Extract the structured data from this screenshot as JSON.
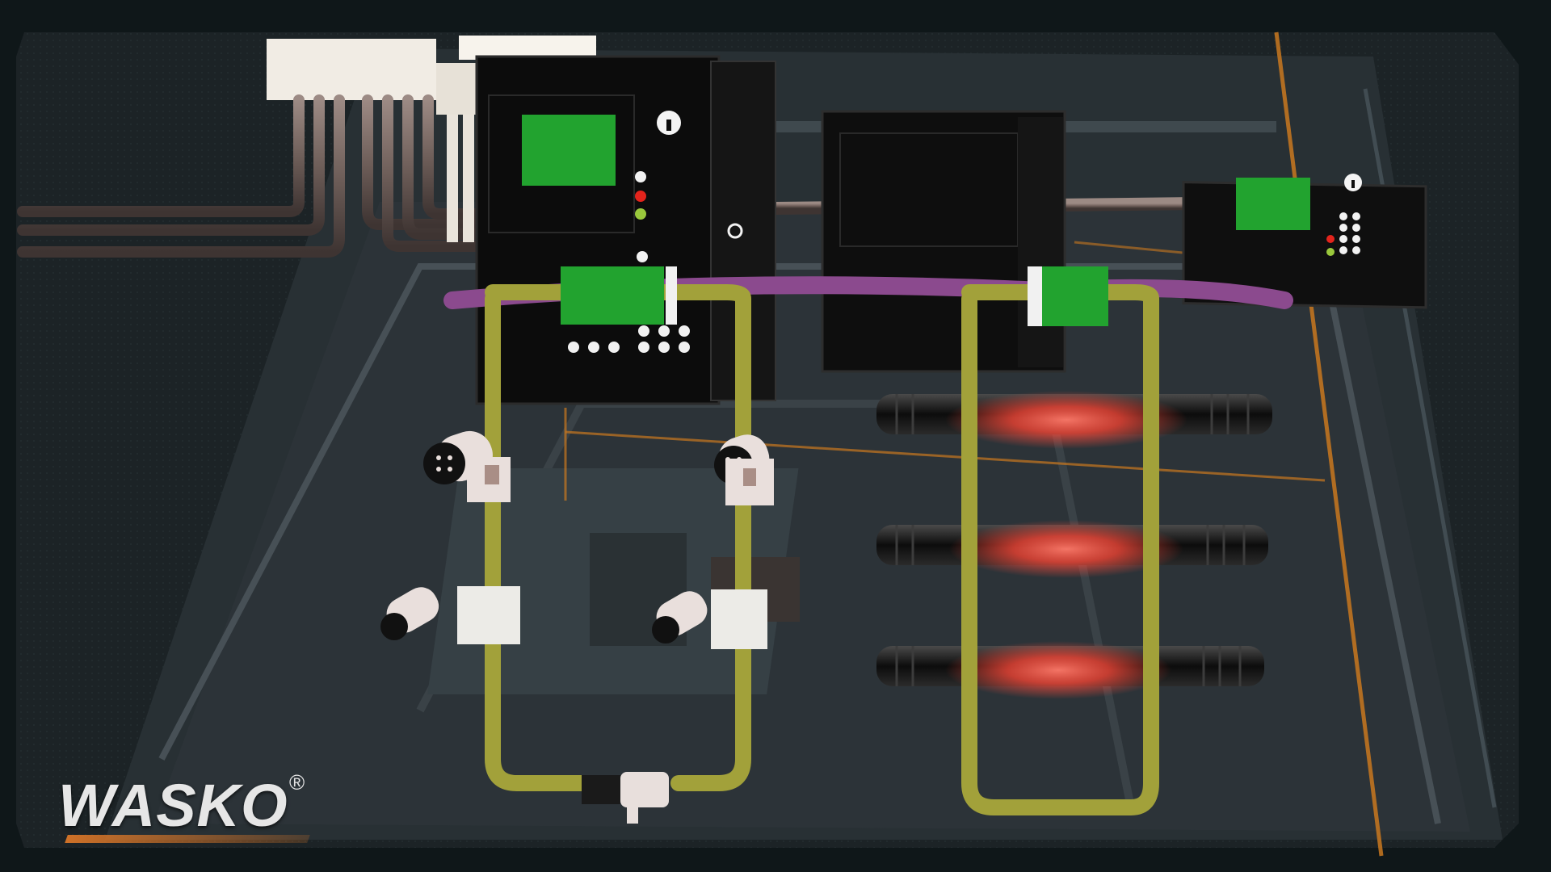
{
  "brand": {
    "name": "WASKO",
    "mark": "®"
  },
  "colors": {
    "background": "#0f1719",
    "frame": "#1d2427",
    "floor": "#2b3236",
    "orange_lines": "#c9781f",
    "cabinet": "#111111",
    "screen_green": "#22a32f",
    "fiber_yellow": "#a2a13a",
    "fiber_purple": "#8b4a8e",
    "glow_red": "#ff4a3a",
    "led_red": "#e3241c",
    "led_green": "#9ac83c"
  },
  "scene": {
    "description_icons": [
      "server-cabinet-icon",
      "cctv-camera-icon",
      "fiber-connector-icon",
      "keyhole-icon"
    ]
  }
}
